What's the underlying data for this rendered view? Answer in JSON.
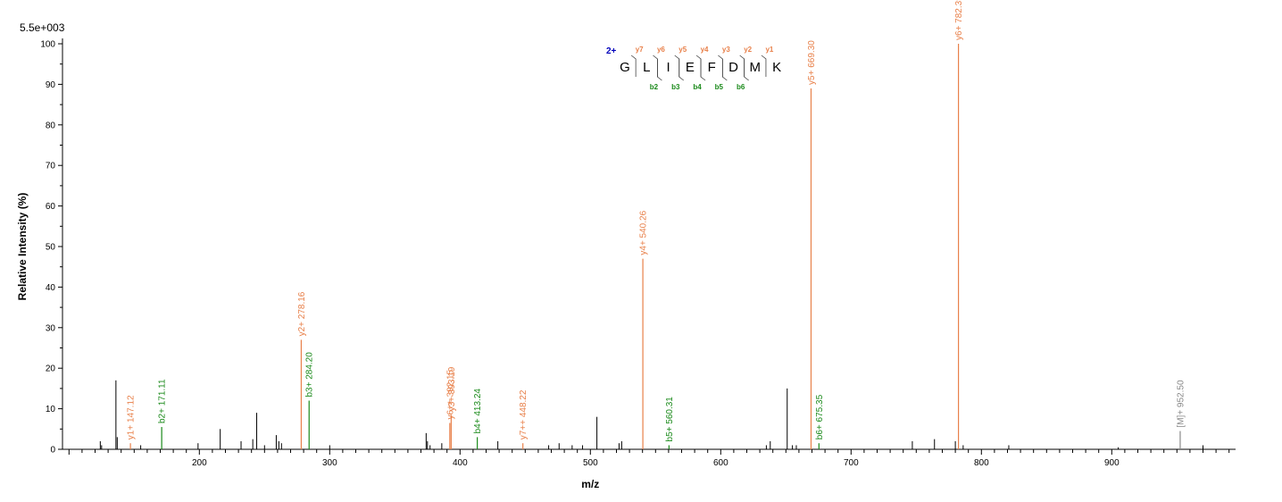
{
  "intensity_scale": "5.5e+003",
  "chart_data": {
    "type": "bar",
    "xlabel": "m/z",
    "ylabel": "Relative   Intensity (%)",
    "xlim": [
      95,
      995
    ],
    "ylim": [
      0,
      100
    ],
    "xticks": [
      200,
      300,
      400,
      500,
      600,
      700,
      800,
      900
    ],
    "yticks": [
      0,
      10,
      20,
      30,
      40,
      50,
      60,
      70,
      80,
      90,
      100
    ],
    "colors": {
      "y_ion": "#e8804a",
      "b_ion": "#1a8a1a",
      "precursor": "#888888",
      "unassigned": "#000000"
    },
    "annotated_peaks": [
      {
        "mz": 147.12,
        "intensity": 1.5,
        "label": "y1+ 147.12",
        "ion": "y"
      },
      {
        "mz": 171.11,
        "intensity": 5.5,
        "label": "b2+ 171.11",
        "ion": "b"
      },
      {
        "mz": 278.16,
        "intensity": 27,
        "label": "y2+ 278.16",
        "ion": "y"
      },
      {
        "mz": 284.2,
        "intensity": 12,
        "label": "b3+ 284.20",
        "ion": "b"
      },
      {
        "mz": 392.15,
        "intensity": 6.5,
        "label": "y6++ 392.15",
        "ion": "y"
      },
      {
        "mz": 393.19,
        "intensity": 8.5,
        "label": "y3+ 393.19",
        "ion": "y"
      },
      {
        "mz": 413.24,
        "intensity": 3,
        "label": "b4+ 413.24",
        "ion": "b"
      },
      {
        "mz": 448.22,
        "intensity": 1.5,
        "label": "y7++ 448.22",
        "ion": "y"
      },
      {
        "mz": 540.26,
        "intensity": 47,
        "label": "y4+ 540.26",
        "ion": "y"
      },
      {
        "mz": 560.31,
        "intensity": 1,
        "label": "b5+ 560.31",
        "ion": "b"
      },
      {
        "mz": 669.3,
        "intensity": 89,
        "label": "y5+ 669.30",
        "ion": "y"
      },
      {
        "mz": 675.35,
        "intensity": 1.5,
        "label": "b6+ 675.35",
        "ion": "b"
      },
      {
        "mz": 782.39,
        "intensity": 100,
        "label": "y6+ 782.39",
        "ion": "y"
      },
      {
        "mz": 952.5,
        "intensity": 4.5,
        "label": "[M]+ 952.50",
        "ion": "precursor"
      }
    ],
    "unassigned_peaks": [
      {
        "mz": 124,
        "intensity": 2
      },
      {
        "mz": 125,
        "intensity": 1
      },
      {
        "mz": 136,
        "intensity": 17
      },
      {
        "mz": 137,
        "intensity": 3
      },
      {
        "mz": 155,
        "intensity": 1
      },
      {
        "mz": 199,
        "intensity": 1.5
      },
      {
        "mz": 216,
        "intensity": 5
      },
      {
        "mz": 232,
        "intensity": 2
      },
      {
        "mz": 241,
        "intensity": 2.5
      },
      {
        "mz": 244,
        "intensity": 9
      },
      {
        "mz": 250,
        "intensity": 1
      },
      {
        "mz": 259,
        "intensity": 3.5
      },
      {
        "mz": 261,
        "intensity": 2
      },
      {
        "mz": 263,
        "intensity": 1.5
      },
      {
        "mz": 300,
        "intensity": 1
      },
      {
        "mz": 374,
        "intensity": 4
      },
      {
        "mz": 375,
        "intensity": 2
      },
      {
        "mz": 377,
        "intensity": 1
      },
      {
        "mz": 386,
        "intensity": 1.5
      },
      {
        "mz": 429,
        "intensity": 2
      },
      {
        "mz": 468,
        "intensity": 1
      },
      {
        "mz": 476,
        "intensity": 1.5
      },
      {
        "mz": 486,
        "intensity": 1
      },
      {
        "mz": 494,
        "intensity": 1
      },
      {
        "mz": 505,
        "intensity": 8
      },
      {
        "mz": 522,
        "intensity": 1.5
      },
      {
        "mz": 524,
        "intensity": 2
      },
      {
        "mz": 635,
        "intensity": 1
      },
      {
        "mz": 638,
        "intensity": 2
      },
      {
        "mz": 651,
        "intensity": 15
      },
      {
        "mz": 655,
        "intensity": 1
      },
      {
        "mz": 658,
        "intensity": 1
      },
      {
        "mz": 747,
        "intensity": 2
      },
      {
        "mz": 764,
        "intensity": 2.5
      },
      {
        "mz": 780,
        "intensity": 2
      },
      {
        "mz": 786,
        "intensity": 1
      },
      {
        "mz": 821,
        "intensity": 1
      },
      {
        "mz": 905,
        "intensity": 0.5
      },
      {
        "mz": 970,
        "intensity": 1
      }
    ]
  },
  "sequence_panel": {
    "charge": "2+",
    "residues": [
      "G",
      "L",
      "I",
      "E",
      "F",
      "D",
      "M",
      "K"
    ],
    "y_ions": [
      {
        "gap": 1,
        "label": "y7"
      },
      {
        "gap": 2,
        "label": "y6"
      },
      {
        "gap": 3,
        "label": "y5"
      },
      {
        "gap": 4,
        "label": "y4"
      },
      {
        "gap": 5,
        "label": "y3"
      },
      {
        "gap": 6,
        "label": "y2"
      },
      {
        "gap": 7,
        "label": "y1"
      }
    ],
    "b_ions": [
      {
        "gap": 2,
        "label": "b2"
      },
      {
        "gap": 3,
        "label": "b3"
      },
      {
        "gap": 4,
        "label": "b4"
      },
      {
        "gap": 5,
        "label": "b5"
      },
      {
        "gap": 6,
        "label": "b6"
      }
    ]
  }
}
